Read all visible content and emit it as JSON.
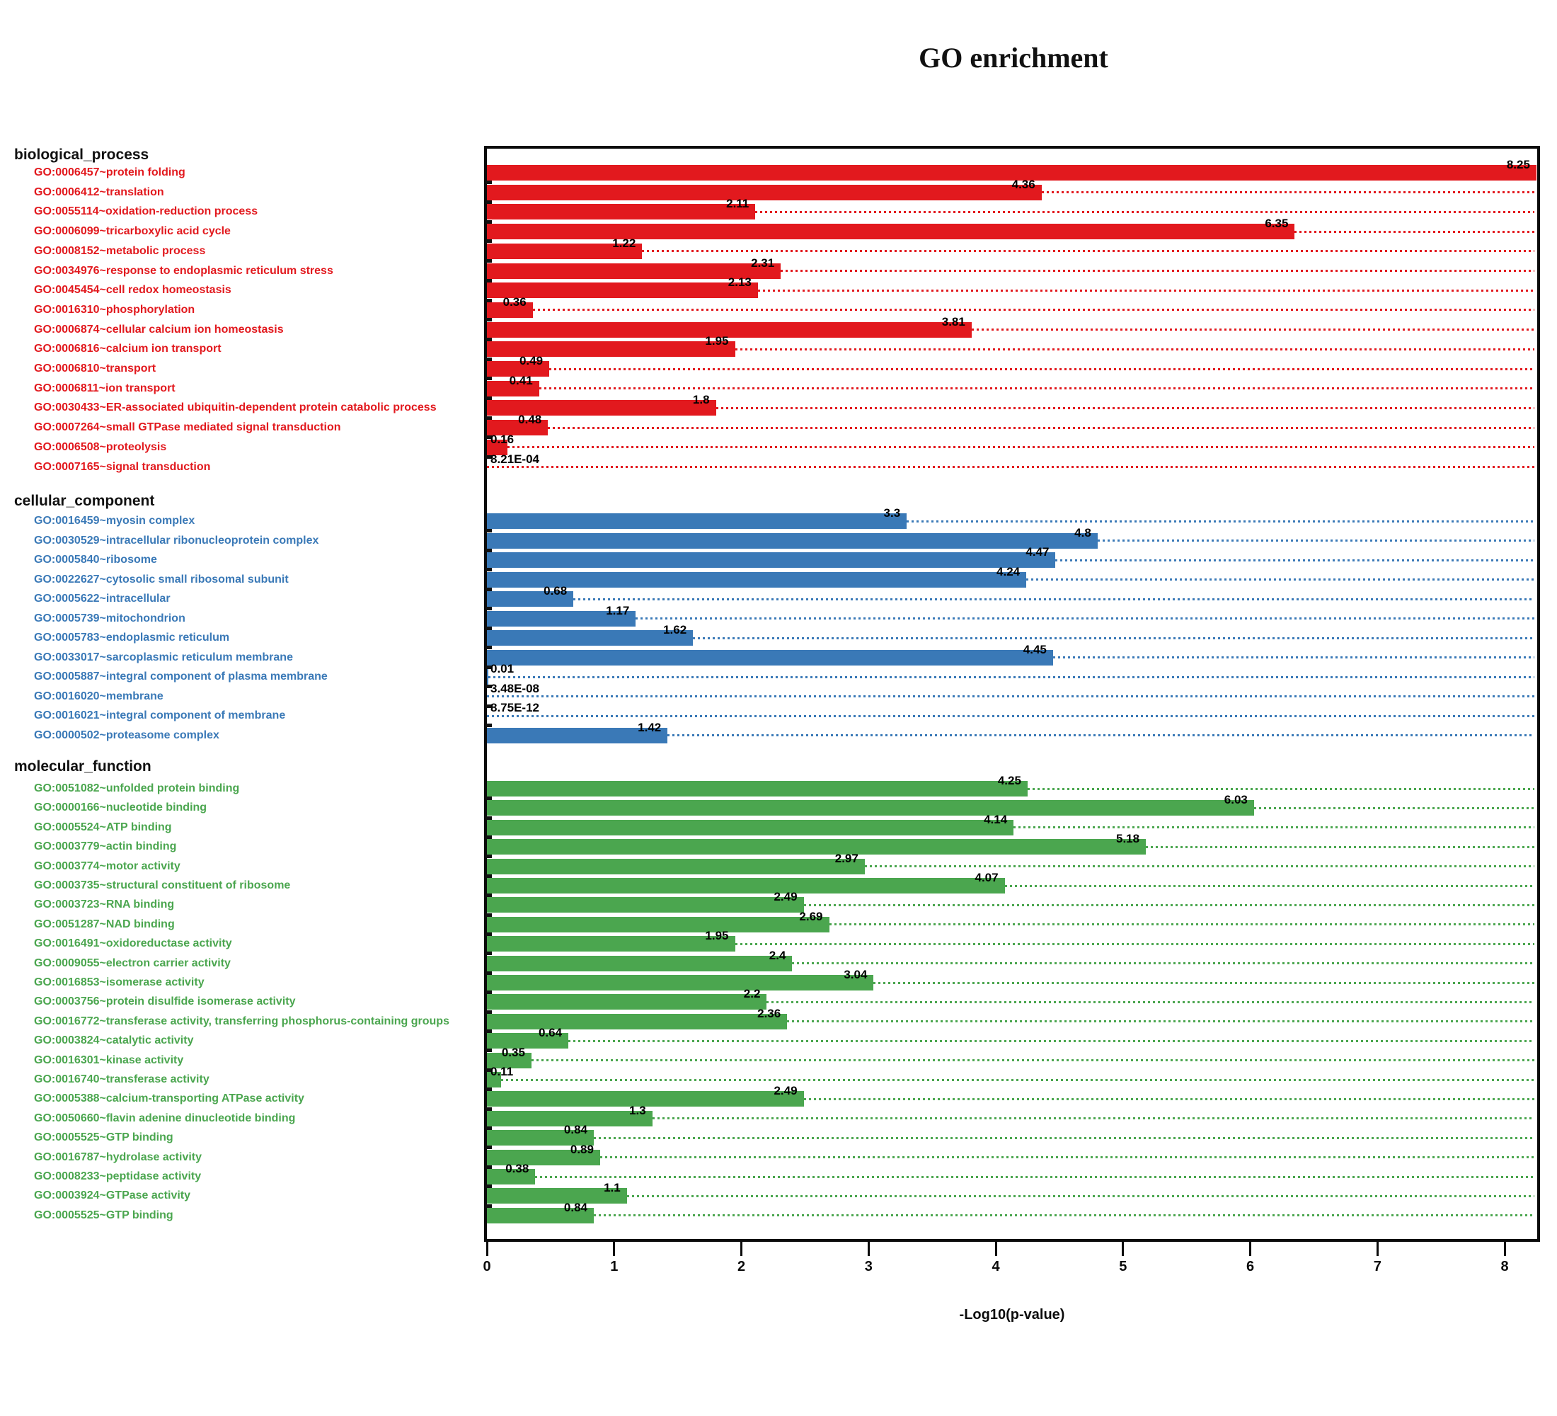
{
  "title": "GO enrichment",
  "x_axis": {
    "label": "-Log10(p-value)",
    "ticks": [
      "0",
      "1",
      "2",
      "3",
      "4",
      "5",
      "6",
      "7",
      "8"
    ]
  },
  "chart_data": {
    "type": "bar",
    "orientation": "horizontal",
    "title": "GO enrichment",
    "xlabel": "-Log10(p-value)",
    "xlim": [
      0,
      8.26
    ],
    "x_ticks": [
      0,
      1,
      2,
      3,
      4,
      5,
      6,
      7,
      8
    ],
    "grid": "dotted leader line from each bar end to right plot edge, colored per section",
    "legend_position": "none",
    "sections": [
      {
        "name": "biological_process",
        "color": "#e2191e",
        "items": [
          {
            "label": "GO:0006457~protein folding",
            "value": 8.25,
            "value_label": "8.25"
          },
          {
            "label": "GO:0006412~translation",
            "value": 4.36,
            "value_label": "4.36"
          },
          {
            "label": "GO:0055114~oxidation-reduction process",
            "value": 2.11,
            "value_label": "2.11"
          },
          {
            "label": "GO:0006099~tricarboxylic acid cycle",
            "value": 6.35,
            "value_label": "6.35"
          },
          {
            "label": "GO:0008152~metabolic process",
            "value": 1.22,
            "value_label": "1.22"
          },
          {
            "label": "GO:0034976~response to endoplasmic reticulum stress",
            "value": 2.31,
            "value_label": "2.31"
          },
          {
            "label": "GO:0045454~cell redox homeostasis",
            "value": 2.13,
            "value_label": "2.13"
          },
          {
            "label": "GO:0016310~phosphorylation",
            "value": 0.36,
            "value_label": "0.36"
          },
          {
            "label": "GO:0006874~cellular calcium ion homeostasis",
            "value": 3.81,
            "value_label": "3.81"
          },
          {
            "label": "GO:0006816~calcium ion transport",
            "value": 1.95,
            "value_label": "1.95"
          },
          {
            "label": "GO:0006810~transport",
            "value": 0.49,
            "value_label": "0.49"
          },
          {
            "label": "GO:0006811~ion transport",
            "value": 0.41,
            "value_label": "0.41"
          },
          {
            "label": "GO:0030433~ER-associated ubiquitin-dependent protein catabolic process",
            "value": 1.8,
            "value_label": "1.8"
          },
          {
            "label": "GO:0007264~small GTPase mediated signal transduction",
            "value": 0.48,
            "value_label": "0.48"
          },
          {
            "label": "GO:0006508~proteolysis",
            "value": 0.16,
            "value_label": "0.16"
          },
          {
            "label": "GO:0007165~signal transduction",
            "value": 0.000821,
            "value_label": "8.21E-04"
          }
        ]
      },
      {
        "name": "cellular_component",
        "color": "#3a79b7",
        "items": [
          {
            "label": "GO:0016459~myosin complex",
            "value": 3.3,
            "value_label": "3.3"
          },
          {
            "label": "GO:0030529~intracellular ribonucleoprotein complex",
            "value": 4.8,
            "value_label": "4.8"
          },
          {
            "label": "GO:0005840~ribosome",
            "value": 4.47,
            "value_label": "4.47"
          },
          {
            "label": "GO:0022627~cytosolic small ribosomal subunit",
            "value": 4.24,
            "value_label": "4.24"
          },
          {
            "label": "GO:0005622~intracellular",
            "value": 0.68,
            "value_label": "0.68"
          },
          {
            "label": "GO:0005739~mitochondrion",
            "value": 1.17,
            "value_label": "1.17"
          },
          {
            "label": "GO:0005783~endoplasmic reticulum",
            "value": 1.62,
            "value_label": "1.62"
          },
          {
            "label": "GO:0033017~sarcoplasmic reticulum membrane",
            "value": 4.45,
            "value_label": "4.45"
          },
          {
            "label": "GO:0005887~integral component of plasma membrane",
            "value": 0.01,
            "value_label": "0.01"
          },
          {
            "label": "GO:0016020~membrane",
            "value": 3.48e-08,
            "value_label": "3.48E-08"
          },
          {
            "label": "GO:0016021~integral component of membrane",
            "value": 8.75e-12,
            "value_label": "8.75E-12"
          },
          {
            "label": "GO:0000502~proteasome complex",
            "value": 1.42,
            "value_label": "1.42"
          }
        ]
      },
      {
        "name": "molecular_function",
        "color": "#4ba64f",
        "items": [
          {
            "label": "GO:0051082~unfolded protein binding",
            "value": 4.25,
            "value_label": "4.25"
          },
          {
            "label": "GO:0000166~nucleotide binding",
            "value": 6.03,
            "value_label": "6.03"
          },
          {
            "label": "GO:0005524~ATP binding",
            "value": 4.14,
            "value_label": "4.14"
          },
          {
            "label": "GO:0003779~actin binding",
            "value": 5.18,
            "value_label": "5.18"
          },
          {
            "label": "GO:0003774~motor activity",
            "value": 2.97,
            "value_label": "2.97"
          },
          {
            "label": "GO:0003735~structural constituent of ribosome",
            "value": 4.07,
            "value_label": "4.07"
          },
          {
            "label": "GO:0003723~RNA binding",
            "value": 2.49,
            "value_label": "2.49"
          },
          {
            "label": "GO:0051287~NAD binding",
            "value": 2.69,
            "value_label": "2.69"
          },
          {
            "label": "GO:0016491~oxidoreductase activity",
            "value": 1.95,
            "value_label": "1.95"
          },
          {
            "label": "GO:0009055~electron carrier activity",
            "value": 2.4,
            "value_label": "2.4"
          },
          {
            "label": "GO:0016853~isomerase activity",
            "value": 3.04,
            "value_label": "3.04"
          },
          {
            "label": "GO:0003756~protein disulfide isomerase activity",
            "value": 2.2,
            "value_label": "2.2"
          },
          {
            "label": "GO:0016772~transferase activity, transferring phosphorus-containing groups",
            "value": 2.36,
            "value_label": "2.36"
          },
          {
            "label": "GO:0003824~catalytic activity",
            "value": 0.64,
            "value_label": "0.64"
          },
          {
            "label": "GO:0016301~kinase activity",
            "value": 0.35,
            "value_label": "0.35"
          },
          {
            "label": "GO:0016740~transferase activity",
            "value": 0.11,
            "value_label": "0.11"
          },
          {
            "label": "GO:0005388~calcium-transporting ATPase activity",
            "value": 2.49,
            "value_label": "2.49"
          },
          {
            "label": "GO:0050660~flavin adenine dinucleotide binding",
            "value": 1.3,
            "value_label": "1.3"
          },
          {
            "label": "GO:0005525~GTP binding",
            "value": 0.84,
            "value_label": "0.84"
          },
          {
            "label": "GO:0016787~hydrolase activity",
            "value": 0.89,
            "value_label": "0.89"
          },
          {
            "label": "GO:0008233~peptidase activity",
            "value": 0.38,
            "value_label": "0.38"
          },
          {
            "label": "GO:0003924~GTPase activity",
            "value": 1.1,
            "value_label": "1.1"
          },
          {
            "label": "GO:0005525~GTP binding",
            "value": 0.84,
            "value_label": "0.84"
          }
        ]
      }
    ]
  }
}
